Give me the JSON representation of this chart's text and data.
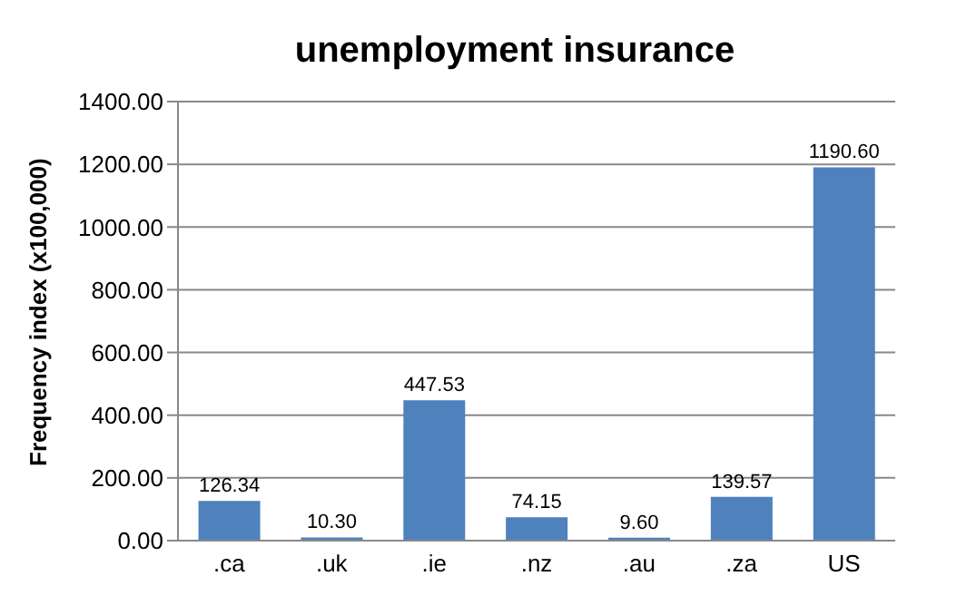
{
  "chart_data": {
    "type": "bar",
    "title": "unemployment insurance",
    "ylabel": "Frequency index (x100,000)",
    "categories": [
      ".ca",
      ".uk",
      ".ie",
      ".nz",
      ".au",
      ".za",
      "US"
    ],
    "values": [
      126.34,
      10.3,
      447.53,
      74.15,
      9.6,
      139.57,
      1190.6
    ],
    "value_labels": [
      "126.34",
      "10.30",
      "447.53",
      "74.15",
      "9.60",
      "139.57",
      "1190.60"
    ],
    "color": "#4f81bd",
    "ylim": [
      0,
      1400
    ],
    "yticks": [
      {
        "value": 0,
        "label": "0.00"
      },
      {
        "value": 200,
        "label": "200.00"
      },
      {
        "value": 400,
        "label": "400.00"
      },
      {
        "value": 600,
        "label": "600.00"
      },
      {
        "value": 800,
        "label": "800.00"
      },
      {
        "value": 1000,
        "label": "1000.00"
      },
      {
        "value": 1200,
        "label": "1200.00"
      },
      {
        "value": 1400,
        "label": "1400.00"
      }
    ],
    "grid": "y"
  }
}
